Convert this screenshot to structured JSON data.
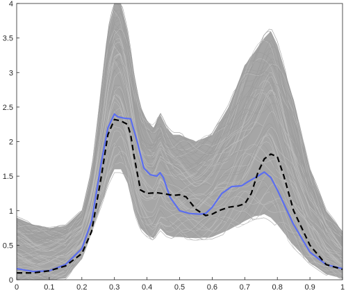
{
  "chart_data": {
    "type": "line",
    "title": "",
    "xlabel": "",
    "ylabel": "",
    "xlim": [
      0,
      1
    ],
    "ylim": [
      0,
      4
    ],
    "x_ticks": [
      "0",
      "0.1",
      "0.2",
      "0.3",
      "0.4",
      "0.5",
      "0.6",
      "0.7",
      "0.8",
      "0.9",
      "1"
    ],
    "y_ticks": [
      "0",
      "0.5",
      "1",
      "1.5",
      "2",
      "2.5",
      "3",
      "3.5",
      "4"
    ],
    "grid": false,
    "legend": "none",
    "colors": {
      "ensemble": "#a6a6a6",
      "blue_curve": "#5b6ef0",
      "black_curve": "#000000"
    },
    "band": {
      "description_free": true,
      "x": [
        0,
        0.05,
        0.1,
        0.15,
        0.2,
        0.23,
        0.26,
        0.28,
        0.3,
        0.32,
        0.34,
        0.36,
        0.38,
        0.4,
        0.42,
        0.44,
        0.46,
        0.48,
        0.5,
        0.55,
        0.6,
        0.65,
        0.7,
        0.73,
        0.76,
        0.78,
        0.8,
        0.85,
        0.9,
        0.95,
        1.0
      ],
      "upper": [
        0.9,
        0.8,
        0.75,
        0.78,
        1.0,
        1.6,
        2.8,
        3.6,
        4.0,
        4.0,
        3.6,
        3.0,
        2.5,
        2.3,
        2.2,
        2.4,
        2.2,
        2.1,
        2.1,
        2.0,
        2.1,
        2.5,
        3.1,
        3.3,
        3.5,
        3.6,
        3.4,
        2.6,
        1.6,
        1.0,
        0.7
      ],
      "lower": [
        0.0,
        0.0,
        0.0,
        0.02,
        0.3,
        0.7,
        1.1,
        1.4,
        1.6,
        1.6,
        1.4,
        1.0,
        0.75,
        0.65,
        0.6,
        0.75,
        0.65,
        0.62,
        0.62,
        0.6,
        0.62,
        0.72,
        0.85,
        0.92,
        0.95,
        0.9,
        0.8,
        0.5,
        0.25,
        0.08,
        0.02
      ]
    },
    "series": [
      {
        "color": "#5b6ef0",
        "style": "solid",
        "x": [
          0,
          0.05,
          0.1,
          0.15,
          0.2,
          0.23,
          0.26,
          0.28,
          0.3,
          0.31,
          0.32,
          0.33,
          0.35,
          0.37,
          0.39,
          0.41,
          0.43,
          0.44,
          0.45,
          0.47,
          0.5,
          0.53,
          0.56,
          0.58,
          0.6,
          0.63,
          0.66,
          0.69,
          0.71,
          0.74,
          0.76,
          0.78,
          0.8,
          0.85,
          0.9,
          0.95,
          1.0
        ],
        "y": [
          0.16,
          0.12,
          0.13,
          0.22,
          0.45,
          0.85,
          1.7,
          2.2,
          2.4,
          2.36,
          2.35,
          2.34,
          2.33,
          2.0,
          1.62,
          1.52,
          1.5,
          1.55,
          1.48,
          1.2,
          1.0,
          0.96,
          0.95,
          0.96,
          1.05,
          1.25,
          1.35,
          1.36,
          1.42,
          1.5,
          1.56,
          1.48,
          1.3,
          0.8,
          0.4,
          0.22,
          0.16
        ]
      },
      {
        "color": "#000000",
        "style": "dashed",
        "x": [
          0,
          0.05,
          0.1,
          0.15,
          0.2,
          0.23,
          0.26,
          0.28,
          0.3,
          0.32,
          0.34,
          0.35,
          0.36,
          0.38,
          0.4,
          0.43,
          0.46,
          0.48,
          0.5,
          0.52,
          0.55,
          0.58,
          0.6,
          0.62,
          0.65,
          0.68,
          0.7,
          0.72,
          0.74,
          0.76,
          0.78,
          0.8,
          0.82,
          0.85,
          0.9,
          0.95,
          1.0
        ],
        "y": [
          0.1,
          0.1,
          0.13,
          0.2,
          0.38,
          0.7,
          1.5,
          2.1,
          2.32,
          2.3,
          2.25,
          2.1,
          1.8,
          1.3,
          1.25,
          1.26,
          1.24,
          1.22,
          1.23,
          1.2,
          1.02,
          0.93,
          0.95,
          1.0,
          1.05,
          1.07,
          1.1,
          1.25,
          1.55,
          1.75,
          1.82,
          1.78,
          1.5,
          1.0,
          0.5,
          0.22,
          0.15
        ]
      }
    ]
  }
}
